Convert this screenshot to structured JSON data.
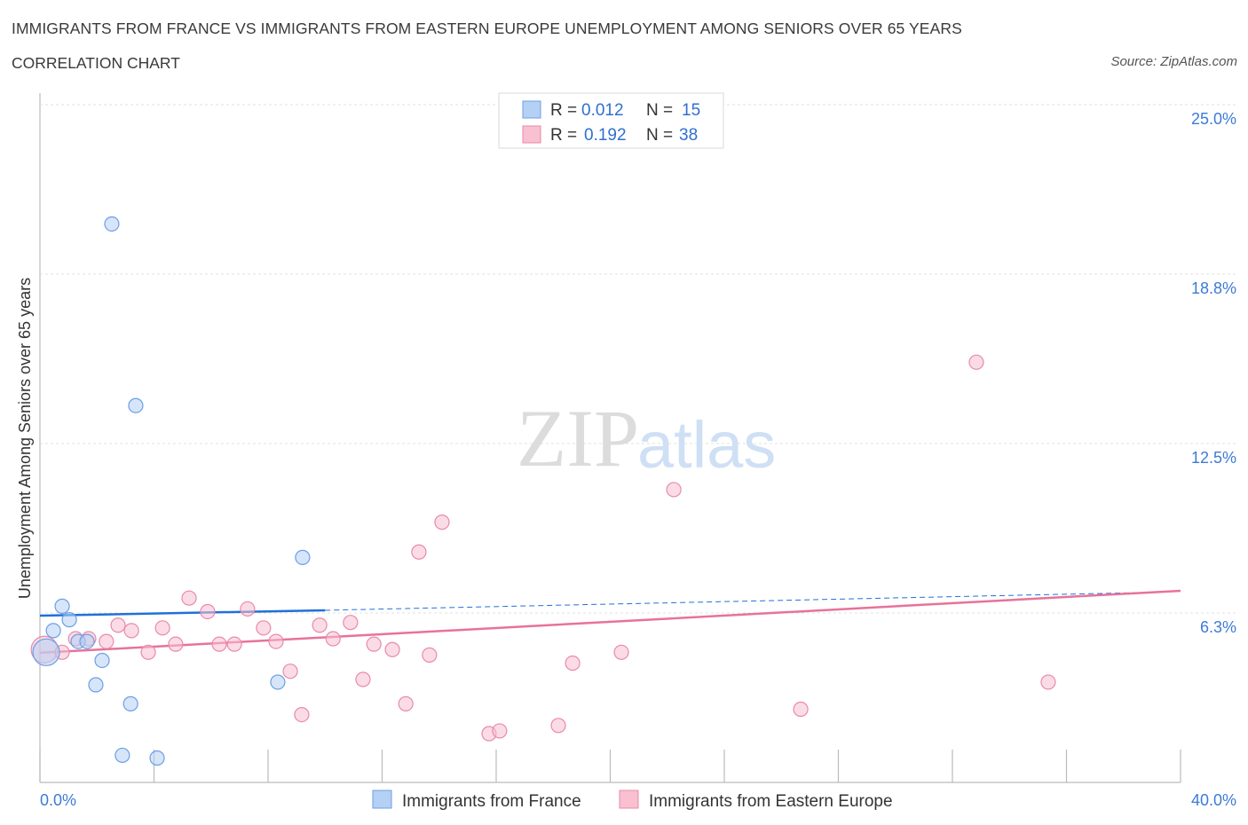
{
  "title": "IMMIGRANTS FROM FRANCE VS IMMIGRANTS FROM EASTERN EUROPE UNEMPLOYMENT AMONG SENIORS OVER 65 YEARS",
  "subtitle": "CORRELATION CHART",
  "source": "Source: ZipAtlas.com",
  "watermark": "ZIPatlas",
  "colors": {
    "blue_fill": "#b5d0f5",
    "blue_stroke": "#6b9fe3",
    "blue_line": "#2170d8",
    "pink_fill": "#f8c0d1",
    "pink_stroke": "#e98aa8",
    "pink_line": "#e8729a",
    "accent_text": "#3d7bd6"
  },
  "chart_data": {
    "type": "scatter",
    "title": "IMMIGRANTS FROM FRANCE VS IMMIGRANTS FROM EASTERN EUROPE UNEMPLOYMENT AMONG SENIORS OVER 65 YEARS",
    "xlabel": "",
    "ylabel": "Unemployment Among Seniors over 65 years",
    "xlim": [
      0,
      40
    ],
    "ylim": [
      0,
      25
    ],
    "x_tick_labels": [
      "0.0%",
      "40.0%"
    ],
    "y_ticks": [
      6.3,
      12.5,
      18.8,
      25.0
    ],
    "y_tick_labels": [
      "6.3%",
      "12.5%",
      "18.8%",
      "25.0%"
    ],
    "grid": true,
    "legend_placement": "top-center",
    "stats": [
      {
        "r_label": "R =",
        "r": "0.012",
        "n_label": "N =",
        "n": "15"
      },
      {
        "r_label": "R =",
        "r": "0.192",
        "n_label": "N =",
        "n": "38"
      }
    ],
    "series": [
      {
        "name": "Immigrants from France",
        "trend": [
          [
            0,
            6.15
          ],
          [
            10,
            6.35
          ],
          [
            38.5,
            7.0
          ]
        ],
        "trend_solid_until": 10,
        "points": [
          [
            0.22,
            4.8
          ],
          [
            0.47,
            5.6
          ],
          [
            0.78,
            6.5
          ],
          [
            1.03,
            6.0
          ],
          [
            1.34,
            5.2
          ],
          [
            1.65,
            5.2
          ],
          [
            2.18,
            4.5
          ],
          [
            1.96,
            3.6
          ],
          [
            2.52,
            20.6
          ],
          [
            3.36,
            13.9
          ],
          [
            3.18,
            2.9
          ],
          [
            2.89,
            1.0
          ],
          [
            4.11,
            0.9
          ],
          [
            9.21,
            8.3
          ],
          [
            8.34,
            3.7
          ]
        ]
      },
      {
        "name": "Immigrants from Eastern Europe",
        "trend": [
          [
            0,
            4.78
          ],
          [
            40,
            7.07
          ]
        ],
        "points": [
          [
            0.16,
            4.9
          ],
          [
            0.78,
            4.8
          ],
          [
            1.25,
            5.3
          ],
          [
            1.71,
            5.3
          ],
          [
            2.33,
            5.2
          ],
          [
            2.74,
            5.8
          ],
          [
            3.21,
            5.6
          ],
          [
            3.8,
            4.8
          ],
          [
            4.3,
            5.7
          ],
          [
            4.76,
            5.1
          ],
          [
            5.23,
            6.8
          ],
          [
            5.88,
            6.3
          ],
          [
            6.29,
            5.1
          ],
          [
            6.82,
            5.1
          ],
          [
            7.28,
            6.4
          ],
          [
            7.84,
            5.7
          ],
          [
            8.28,
            5.2
          ],
          [
            8.78,
            4.1
          ],
          [
            9.18,
            2.5
          ],
          [
            9.81,
            5.8
          ],
          [
            10.28,
            5.3
          ],
          [
            10.89,
            5.9
          ],
          [
            11.33,
            3.8
          ],
          [
            11.71,
            5.1
          ],
          [
            12.36,
            4.9
          ],
          [
            12.83,
            2.9
          ],
          [
            13.29,
            8.5
          ],
          [
            13.66,
            4.7
          ],
          [
            14.1,
            9.6
          ],
          [
            15.75,
            1.8
          ],
          [
            16.12,
            1.9
          ],
          [
            18.18,
            2.1
          ],
          [
            18.68,
            4.4
          ],
          [
            20.39,
            4.8
          ],
          [
            22.23,
            10.8
          ],
          [
            26.68,
            2.7
          ],
          [
            32.84,
            15.5
          ],
          [
            35.36,
            3.7
          ]
        ]
      }
    ]
  }
}
